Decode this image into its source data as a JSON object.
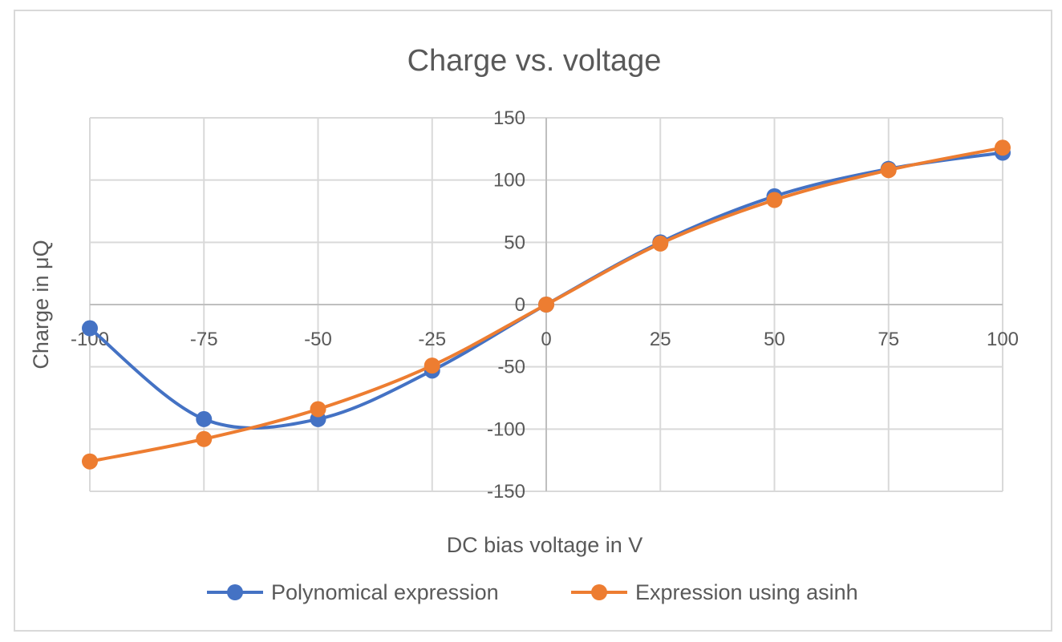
{
  "chart_data": {
    "type": "line",
    "title": "Charge vs. voltage",
    "xlabel": "DC bias voltage in V",
    "ylabel": "Charge in μQ",
    "x": [
      -100,
      -75,
      -50,
      -25,
      0,
      25,
      50,
      75,
      100
    ],
    "xlim": [
      -100,
      100
    ],
    "ylim": [
      -150,
      150
    ],
    "x_ticks": [
      "-100",
      "-75",
      "-50",
      "-25",
      "0",
      "25",
      "50",
      "75",
      "100"
    ],
    "y_ticks": [
      "150",
      "100",
      "50",
      "0",
      "-50",
      "-100",
      "-150"
    ],
    "grid": true,
    "legend_position": "bottom",
    "series": [
      {
        "name": "Polynomical expression",
        "color": "#4472c4",
        "values": [
          -19,
          -92,
          -92,
          -53,
          0,
          50,
          87,
          109,
          122
        ]
      },
      {
        "name": "Expression using asinh",
        "color": "#ed7d31",
        "values": [
          -126,
          -108,
          -84,
          -49,
          0,
          49,
          84,
          108,
          126
        ]
      }
    ]
  }
}
